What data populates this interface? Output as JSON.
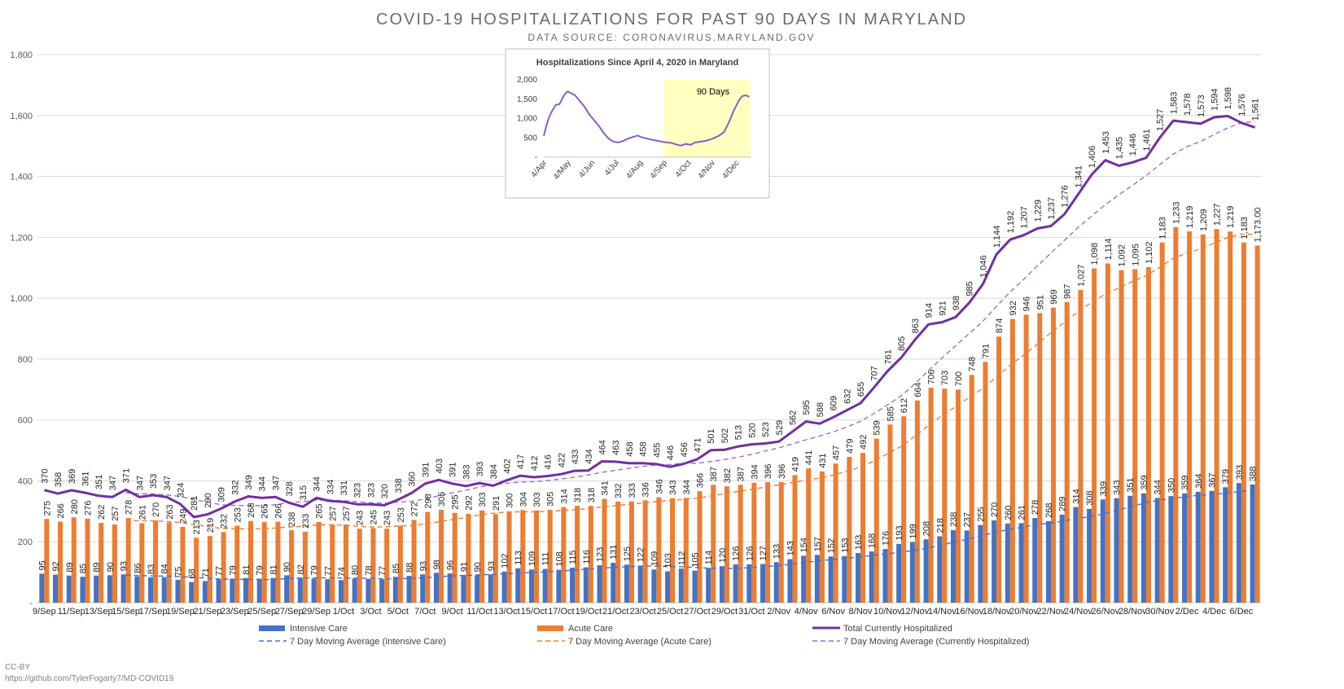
{
  "title": "COVID-19 HOSPITALIZATIONS FOR PAST 90 DAYS IN MARYLAND",
  "subtitle": "DATA SOURCE: CORONAVIRUS.MARYLAND.GOV",
  "credit_line1": "CC-BY",
  "credit_line2": "https://github.com/TylerFogarty7/MD-COVID19",
  "colors": {
    "icu": "#4472c4",
    "acute": "#ed7d31",
    "total": "#7030a0",
    "total_ma": "#9b6fd1",
    "grid": "#d9d9d9",
    "highlight": "#ffffc0"
  },
  "legend": {
    "icu": "Intensive Care",
    "acute": "Acute Care",
    "total": "Total Currently Hospitalized",
    "icu_ma": "7 Day Moving Average (Intensive Care)",
    "acute_ma": "7 Day Moving Average (Acute Care)",
    "total_ma": "7 Day Moving Average (Currently Hospitalized)"
  },
  "chart_data": [
    {
      "type": "bar",
      "title": "COVID-19 HOSPITALIZATIONS FOR PAST 90 DAYS IN MARYLAND",
      "ylim": [
        0,
        1800
      ],
      "yticks": [
        "-",
        "200",
        "400",
        "600",
        "800",
        "1,000",
        "1,200",
        "1,400",
        "1,600",
        "1,800"
      ],
      "grid": true,
      "legend_position": "bottom",
      "x_tick_labels": [
        "9/Sep",
        "11/Sep",
        "13/Sep",
        "15/Sep",
        "17/Sep",
        "19/Sep",
        "21/Sep",
        "23/Sep",
        "25/Sep",
        "27/Sep",
        "29/Sep",
        "1/Oct",
        "3/Oct",
        "5/Oct",
        "7/Oct",
        "9/Oct",
        "11/Oct",
        "13/Oct",
        "15/Oct",
        "17/Oct",
        "19/Oct",
        "21/Oct",
        "23/Oct",
        "25/Oct",
        "27/Oct",
        "29/Oct",
        "31/Oct",
        "2/Nov",
        "4/Nov",
        "6/Nov",
        "8/Nov",
        "10/Nov",
        "12/Nov",
        "14/Nov",
        "16/Nov",
        "18/Nov",
        "20/Nov",
        "22/Nov",
        "24/Nov",
        "26/Nov",
        "28/Nov",
        "30/Nov",
        "2/Dec",
        "4/Dec",
        "6/Dec"
      ],
      "series": [
        {
          "name": "Intensive Care",
          "kind": "bar",
          "values": [
            95,
            92,
            89,
            85,
            89,
            90,
            93,
            86,
            83,
            84,
            75,
            68,
            71,
            77,
            79,
            81,
            79,
            81,
            90,
            82,
            79,
            77,
            74,
            80,
            78,
            77,
            85,
            88,
            93,
            98,
            96,
            91,
            90,
            93,
            102,
            113,
            109,
            111,
            108,
            115,
            116,
            123,
            131,
            125,
            122,
            109,
            103,
            112,
            105,
            114,
            120,
            126,
            126,
            127,
            133,
            143,
            154,
            157,
            152,
            153,
            163,
            168,
            176,
            193,
            199,
            208,
            218,
            238,
            237,
            255,
            270,
            260,
            261,
            278,
            268,
            289,
            314,
            308,
            339,
            343,
            351,
            359,
            344,
            350,
            359,
            364,
            367,
            379,
            393,
            388
          ]
        },
        {
          "name": "Acute Care",
          "kind": "bar",
          "values": [
            275,
            266,
            280,
            276,
            262,
            257,
            278,
            261,
            270,
            263,
            249,
            213,
            219,
            232,
            253,
            268,
            265,
            266,
            238,
            233,
            265,
            257,
            257,
            243,
            245,
            243,
            253,
            272,
            298,
            305,
            295,
            292,
            303,
            291,
            300,
            304,
            303,
            305,
            314,
            318,
            318,
            341,
            332,
            333,
            336,
            346,
            343,
            344,
            366,
            387,
            382,
            387,
            394,
            396,
            396,
            419,
            441,
            431,
            457,
            479,
            492,
            539,
            585,
            612,
            664,
            706,
            703,
            700,
            748,
            791,
            874,
            932,
            946,
            951,
            969,
            987,
            1027,
            1098,
            1114,
            1092,
            1095,
            1102,
            1183,
            1233,
            1219,
            1209,
            1227,
            1219,
            1183,
            1173
          ]
        },
        {
          "name": "Total Currently Hospitalized",
          "kind": "line",
          "values": [
            370,
            358,
            369,
            361,
            351,
            347,
            371,
            347,
            353,
            347,
            324,
            281,
            290,
            309,
            332,
            349,
            344,
            347,
            328,
            315,
            344,
            334,
            331,
            323,
            323,
            320,
            338,
            360,
            391,
            403,
            391,
            383,
            393,
            384,
            402,
            417,
            412,
            416,
            422,
            433,
            434,
            464,
            463,
            458,
            458,
            455,
            446,
            456,
            471,
            501,
            502,
            513,
            520,
            523,
            529,
            562,
            595,
            588,
            609,
            632,
            655,
            707,
            761,
            805,
            863,
            914,
            921,
            938,
            985,
            1046,
            1144,
            1192,
            1207,
            1229,
            1237,
            1276,
            1341,
            1406,
            1453,
            1435,
            1446,
            1461,
            1527,
            1583,
            1578,
            1573,
            1594,
            1598,
            1576,
            1561
          ]
        }
      ]
    },
    {
      "type": "area",
      "title": "Hospitalizations Since April 4, 2020 in Maryland",
      "ylim": [
        0,
        2000
      ],
      "yticks": [
        "-",
        "500",
        "1,000",
        "1,500",
        "2,000"
      ],
      "x_tick_labels": [
        "4/Apr",
        "4/May",
        "4/Jun",
        "4/Jul",
        "4/Aug",
        "4/Sep",
        "4/Oct",
        "4/Nov",
        "4/Dec"
      ],
      "annotation": "90 Days",
      "series": [
        {
          "name": "Total Currently Hospitalized",
          "x_months": [
            0,
            0.1,
            0.2,
            0.35,
            0.5,
            0.65,
            0.8,
            0.9,
            1.0,
            1.15,
            1.3,
            1.5,
            1.7,
            1.9,
            2.1,
            2.3,
            2.5,
            2.7,
            2.9,
            3.1,
            3.3,
            3.5,
            3.7,
            3.9,
            4.1,
            4.3,
            4.5,
            4.7,
            4.9,
            5.1,
            5.3,
            5.5,
            5.7,
            5.9,
            6.1,
            6.3,
            6.5,
            6.7,
            6.9,
            7.1,
            7.3,
            7.5,
            7.7,
            7.9,
            8.1,
            8.25,
            8.4,
            8.55
          ],
          "values": [
            550,
            800,
            1000,
            1200,
            1350,
            1370,
            1550,
            1650,
            1700,
            1650,
            1600,
            1450,
            1300,
            1100,
            950,
            800,
            620,
            480,
            400,
            380,
            420,
            480,
            520,
            560,
            510,
            480,
            450,
            430,
            400,
            380,
            370,
            330,
            300,
            340,
            320,
            380,
            400,
            420,
            450,
            500,
            560,
            650,
            900,
            1200,
            1450,
            1580,
            1600,
            1560
          ]
        }
      ]
    }
  ]
}
